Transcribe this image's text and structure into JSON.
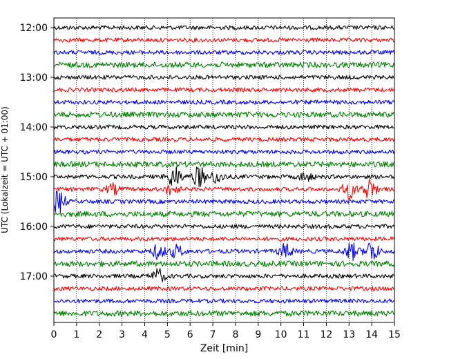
{
  "chart_data": {
    "type": "line",
    "xlabel": "Zeit  [min]",
    "ylabel": "UTC (Lokalzeit = UTC + 01:00)",
    "xlim": [
      0,
      15
    ],
    "x_ticks": [
      "0",
      "1",
      "2",
      "3",
      "4",
      "5",
      "6",
      "7",
      "8",
      "9",
      "10",
      "11",
      "12",
      "13",
      "14",
      "15"
    ],
    "y_ticks": [
      "12:00",
      "13:00",
      "14:00",
      "15:00",
      "16:00",
      "17:00"
    ],
    "grid": "vertical dotted",
    "trace_interval_minutes": 15,
    "trace_start": "12:00",
    "trace_count": 24,
    "trace_colors": [
      "#000000",
      "#ff0000",
      "#0000ff",
      "#008000"
    ],
    "events": [
      {
        "trace": "15:00",
        "x": 5.3,
        "amplitude": 1.6
      },
      {
        "trace": "15:00",
        "x": 6.4,
        "amplitude": 1.5
      },
      {
        "trace": "15:00",
        "x": 7.2,
        "amplitude": 0.9
      },
      {
        "trace": "15:00",
        "x": 11.1,
        "amplitude": 0.6
      },
      {
        "trace": "15:15",
        "x": 2.6,
        "amplitude": 0.7
      },
      {
        "trace": "15:15",
        "x": 5.2,
        "amplitude": 0.8
      },
      {
        "trace": "15:15",
        "x": 13.0,
        "amplitude": 1.3
      },
      {
        "trace": "15:15",
        "x": 13.9,
        "amplitude": 1.5
      },
      {
        "trace": "15:30",
        "x": 0.2,
        "amplitude": 1.6
      },
      {
        "trace": "16:30",
        "x": 4.6,
        "amplitude": 1.0
      },
      {
        "trace": "16:30",
        "x": 5.4,
        "amplitude": 0.9
      },
      {
        "trace": "16:30",
        "x": 10.2,
        "amplitude": 1.0
      },
      {
        "trace": "16:30",
        "x": 13.1,
        "amplitude": 1.2
      },
      {
        "trace": "16:30",
        "x": 14.0,
        "amplitude": 1.6
      },
      {
        "trace": "17:00",
        "x": 4.6,
        "amplitude": 1.0
      }
    ]
  }
}
